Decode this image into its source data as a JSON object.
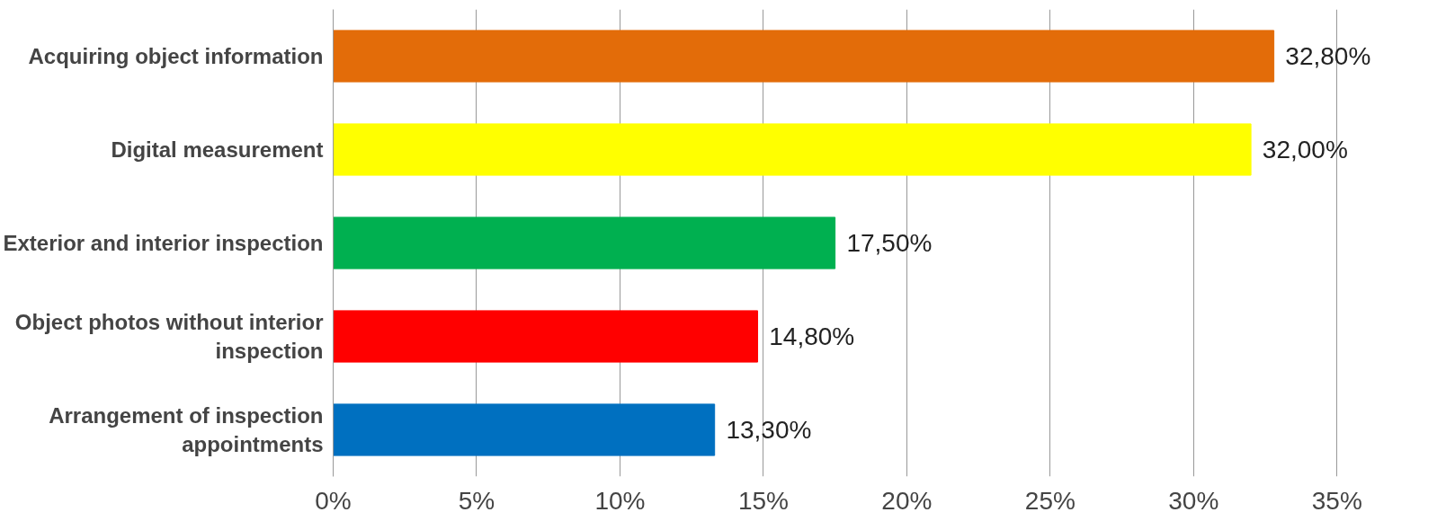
{
  "chart_data": {
    "type": "bar",
    "orientation": "horizontal",
    "categories": [
      "Acquiring object information",
      "Digital measurement",
      "Exterior and interior inspection",
      "Object photos without interior inspection",
      "Arrangement of inspection appointments"
    ],
    "values": [
      32.8,
      32.0,
      17.5,
      14.8,
      13.3
    ],
    "colors": [
      "#e36c09",
      "#ffff00",
      "#00b050",
      "#ff0000",
      "#0070c0"
    ],
    "value_labels": [
      "32,80%",
      "32,00%",
      "17,50%",
      "14,80%",
      "13,30%"
    ],
    "xlim": [
      0,
      35
    ],
    "xticks": [
      {
        "value": 0,
        "label": "0%"
      },
      {
        "value": 5,
        "label": "5%"
      },
      {
        "value": 10,
        "label": "10%"
      },
      {
        "value": 15,
        "label": "15%"
      },
      {
        "value": 20,
        "label": "20%"
      },
      {
        "value": 25,
        "label": "25%"
      },
      {
        "value": 30,
        "label": "30%"
      },
      {
        "value": 35,
        "label": "35%"
      }
    ],
    "grid": "x"
  }
}
